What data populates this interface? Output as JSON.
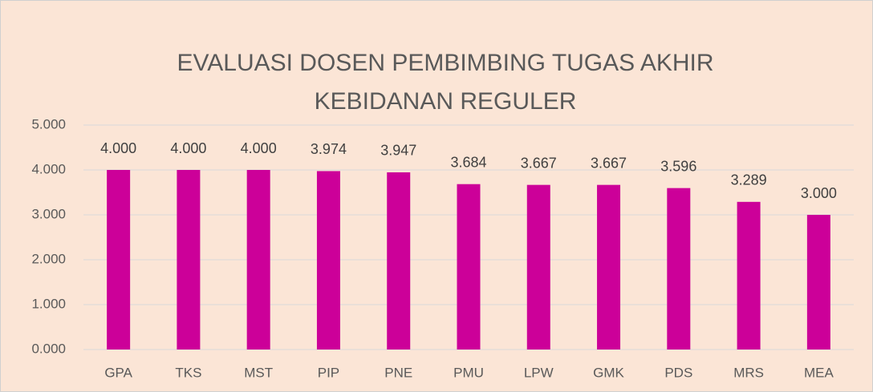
{
  "chart_data": {
    "type": "bar",
    "title": [
      "EVALUASI DOSEN PEMBIMBING TUGAS AKHIR",
      "KEBIDANAN REGULER"
    ],
    "categories": [
      "GPA",
      "TKS",
      "MST",
      "PIP",
      "PNE",
      "PMU",
      "LPW",
      "GMK",
      "PDS",
      "MRS",
      "MEA"
    ],
    "values": [
      4,
      4,
      4,
      3.974,
      3.947,
      3.684,
      3.667,
      3.667,
      3.596,
      3.289,
      3
    ],
    "value_labels": [
      "4.000",
      "4.000",
      "4.000",
      "3.974",
      "3.947",
      "3.684",
      "3.667",
      "3.667",
      "3.596",
      "3.289",
      "3.000"
    ],
    "color": "#cc0099",
    "ylim": [
      0,
      5
    ],
    "yticks": [
      {
        "value": 0,
        "label": "0.000"
      },
      {
        "value": 1,
        "label": "1.000"
      },
      {
        "value": 2,
        "label": "2.000"
      },
      {
        "value": 3,
        "label": "3.000"
      },
      {
        "value": 4,
        "label": "4.000"
      },
      {
        "value": 5,
        "label": "5.000"
      }
    ],
    "grid": true
  }
}
